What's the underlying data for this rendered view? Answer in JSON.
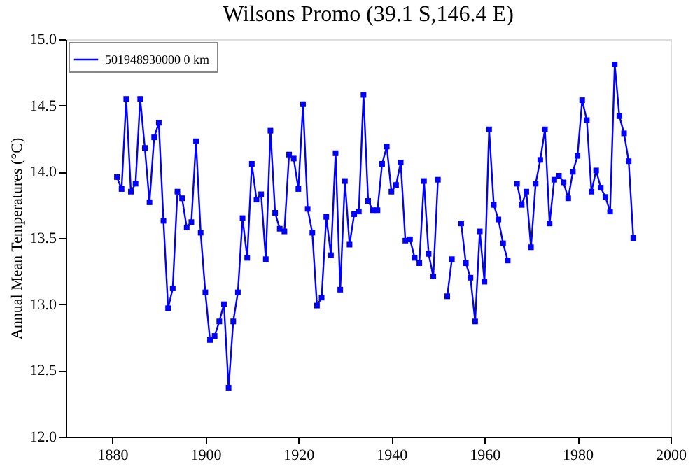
{
  "chart_data": {
    "type": "line",
    "title": "Wilsons Promo (39.1 S,146.4 E)",
    "ylabel": "Annual Mean Temperatures (°C)",
    "x": [
      1881,
      1882,
      1883,
      1884,
      1885,
      1886,
      1887,
      1888,
      1889,
      1890,
      1891,
      1892,
      1893,
      1894,
      1895,
      1896,
      1897,
      1898,
      1899,
      1900,
      1901,
      1902,
      1903,
      1904,
      1905,
      1906,
      1907,
      1908,
      1909,
      1910,
      1911,
      1912,
      1913,
      1914,
      1915,
      1916,
      1917,
      1918,
      1919,
      1920,
      1921,
      1922,
      1923,
      1924,
      1925,
      1926,
      1927,
      1928,
      1929,
      1930,
      1931,
      1932,
      1933,
      1934,
      1935,
      1936,
      1937,
      1938,
      1939,
      1940,
      1941,
      1942,
      1943,
      1944,
      1945,
      1946,
      1947,
      1948,
      1949,
      1950,
      1951,
      1952,
      1953,
      1954,
      1955,
      1956,
      1957,
      1958,
      1959,
      1960,
      1961,
      1962,
      1963,
      1964,
      1965,
      1966,
      1967,
      1968,
      1969,
      1970,
      1971,
      1972,
      1973,
      1974,
      1975,
      1976,
      1977,
      1978,
      1979,
      1980,
      1981,
      1982,
      1983,
      1984,
      1985,
      1986,
      1987,
      1988,
      1989,
      1990,
      1991,
      1992
    ],
    "series": [
      {
        "name": "501948930000  0 km",
        "color": "#0000ff",
        "values": [
          13.96,
          13.87,
          14.55,
          13.85,
          13.91,
          14.55,
          14.18,
          13.77,
          14.26,
          14.37,
          13.63,
          12.97,
          13.12,
          13.85,
          13.8,
          13.58,
          13.62,
          14.23,
          13.54,
          13.09,
          12.73,
          12.76,
          12.87,
          13.0,
          12.37,
          12.87,
          13.09,
          13.65,
          13.35,
          14.06,
          13.79,
          13.83,
          13.34,
          14.31,
          13.69,
          13.57,
          13.55,
          14.13,
          14.1,
          13.87,
          14.51,
          13.72,
          13.54,
          12.99,
          13.05,
          13.66,
          13.37,
          14.14,
          13.11,
          13.93,
          13.45,
          13.68,
          13.7,
          14.58,
          13.78,
          13.71,
          13.71,
          14.06,
          14.19,
          13.85,
          13.9,
          14.07,
          13.48,
          13.49,
          13.35,
          13.31,
          13.93,
          13.38,
          13.21,
          13.94,
          null,
          13.06,
          13.34,
          null,
          13.61,
          13.31,
          13.2,
          12.87,
          13.55,
          13.17,
          14.32,
          13.75,
          13.64,
          13.46,
          13.33,
          null,
          13.91,
          13.75,
          13.85,
          13.43,
          13.91,
          14.09,
          14.32,
          13.61,
          13.94,
          13.97,
          13.92,
          13.8,
          14.0,
          14.12,
          14.54,
          14.39,
          13.85,
          14.01,
          13.88,
          13.81,
          13.7,
          14.81,
          14.42,
          14.29,
          14.08,
          13.5
        ]
      }
    ],
    "xlim": [
      1870,
      2000
    ],
    "xticks": [
      1880,
      1900,
      1920,
      1940,
      1960,
      1980,
      2000
    ],
    "ylim": [
      12.0,
      15.0
    ],
    "yticks": [
      {
        "value": 12,
        "label": "12.0"
      },
      12.5,
      {
        "value": 13,
        "label": "13.0"
      },
      13.5,
      {
        "value": 14,
        "label": "14.0"
      },
      14.5,
      {
        "value": 15,
        "label": "15.0"
      }
    ],
    "marker": "square",
    "line_style": "solid",
    "legend": "top left",
    "grid": false
  }
}
